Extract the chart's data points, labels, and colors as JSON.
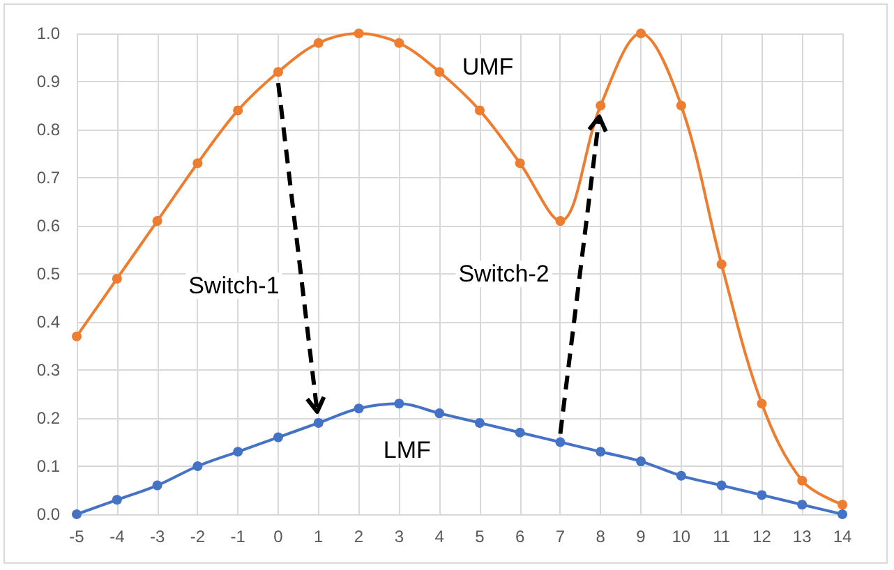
{
  "chart_data": {
    "type": "line",
    "x": [
      -5,
      -4,
      -3,
      -2,
      -1,
      0,
      1,
      2,
      3,
      4,
      5,
      6,
      7,
      8,
      9,
      10,
      11,
      12,
      13,
      14
    ],
    "series": [
      {
        "name": "UMF",
        "color": "#ed7d31",
        "values": [
          0.37,
          0.49,
          0.61,
          0.73,
          0.84,
          0.92,
          0.98,
          1.0,
          0.98,
          0.92,
          0.84,
          0.73,
          0.61,
          0.85,
          1.0,
          0.85,
          0.52,
          0.23,
          0.07,
          0.02
        ]
      },
      {
        "name": "LMF",
        "color": "#4472c4",
        "values": [
          0.0,
          0.03,
          0.06,
          0.1,
          0.13,
          0.16,
          0.19,
          0.22,
          0.23,
          0.21,
          0.19,
          0.17,
          0.15,
          0.13,
          0.11,
          0.08,
          0.06,
          0.04,
          0.02,
          0.0
        ]
      }
    ],
    "annotations": [
      "Switch-1",
      "Switch-2"
    ],
    "xlim": [
      -5,
      14
    ],
    "xticks": [
      -5,
      -4,
      -3,
      -2,
      -1,
      0,
      1,
      2,
      3,
      4,
      5,
      6,
      7,
      8,
      9,
      10,
      11,
      12,
      13,
      14
    ],
    "ylim": [
      0,
      1
    ],
    "yticks": [
      {
        "value": 0,
        "label": "0.0"
      },
      {
        "value": 0.1,
        "label": "0.1"
      },
      {
        "value": 0.2,
        "label": "0.2"
      },
      {
        "value": 0.3,
        "label": "0.3"
      },
      {
        "value": 0.4,
        "label": "0.4"
      },
      {
        "value": 0.5,
        "label": "0.5"
      },
      {
        "value": 0.6,
        "label": "0.6"
      },
      {
        "value": 0.7,
        "label": "0.7"
      },
      {
        "value": 0.8,
        "label": "0.8"
      },
      {
        "value": 0.9,
        "label": "0.9"
      },
      {
        "value": 1,
        "label": "1.0"
      }
    ],
    "grid": true,
    "legend": false,
    "marker": "circle",
    "line_style": "solid"
  }
}
